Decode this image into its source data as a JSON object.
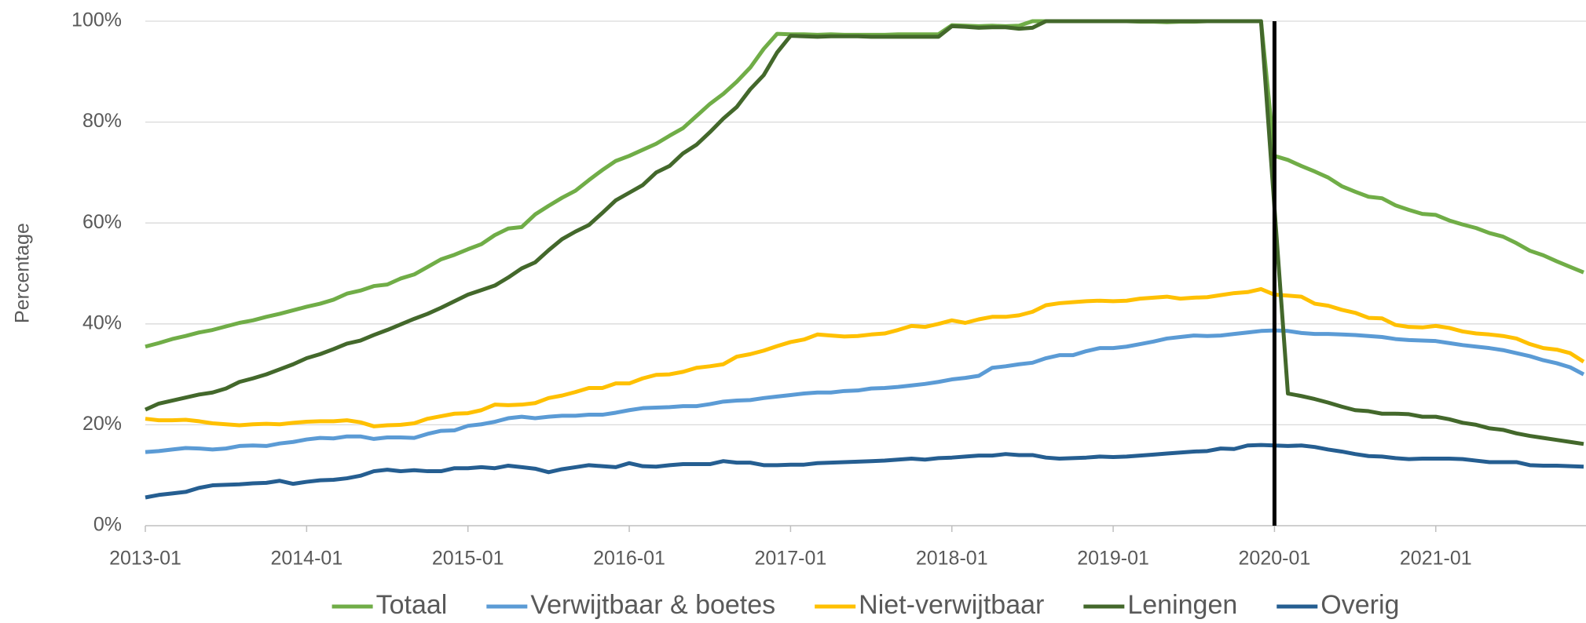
{
  "chart_data": {
    "type": "line",
    "ylabel": "Percentage",
    "categories": [
      "2013-01",
      null,
      null,
      null,
      null,
      null,
      null,
      null,
      null,
      null,
      null,
      null,
      "2014-01",
      null,
      null,
      null,
      null,
      null,
      null,
      null,
      null,
      null,
      null,
      null,
      "2015-01",
      null,
      null,
      null,
      null,
      null,
      null,
      null,
      null,
      null,
      null,
      null,
      "2016-01",
      null,
      null,
      null,
      null,
      null,
      null,
      null,
      null,
      null,
      null,
      null,
      "2017-01",
      null,
      null,
      null,
      null,
      null,
      null,
      null,
      null,
      null,
      null,
      null,
      "2018-01",
      null,
      null,
      null,
      null,
      null,
      null,
      null,
      null,
      null,
      null,
      null,
      "2019-01",
      null,
      null,
      null,
      null,
      null,
      null,
      null,
      null,
      null,
      null,
      null,
      "2020-01",
      null,
      null,
      null,
      null,
      null,
      null,
      null,
      null,
      null,
      null,
      null,
      "2021-01",
      null,
      null,
      null,
      null,
      null,
      null,
      null,
      null,
      null,
      null,
      null
    ],
    "ylim": [
      0,
      100
    ],
    "yticks": [
      {
        "value": 0,
        "label": "0%"
      },
      {
        "value": 20,
        "label": "20%"
      },
      {
        "value": 40,
        "label": "40%"
      },
      {
        "value": 60,
        "label": "60%"
      },
      {
        "value": 80,
        "label": "80%"
      },
      {
        "value": 100,
        "label": "100%"
      }
    ],
    "grid": true,
    "legend": "bottom",
    "vline": "2020-01",
    "series": [
      {
        "name": "Totaal",
        "color": "#70ad47",
        "values": [
          35.5,
          36.2,
          37,
          37.6,
          38.3,
          38.8,
          39.5,
          40.2,
          40.7,
          41.4,
          42,
          42.7,
          43.4,
          44,
          44.8,
          46,
          46.6,
          47.5,
          47.8,
          49,
          49.8,
          51.3,
          52.8,
          53.7,
          54.8,
          55.8,
          57.6,
          58.9,
          59.2,
          61.7,
          63.4,
          65,
          66.4,
          68.5,
          70.5,
          72.3,
          73.3,
          74.5,
          75.7,
          77.3,
          78.8,
          81.2,
          83.6,
          85.6,
          88,
          90.8,
          94.5,
          97.5,
          97.4,
          97.4,
          97.3,
          97.4,
          97.3,
          97.3,
          97.3,
          97.3,
          97.4,
          97.4,
          97.4,
          97.4,
          99.2,
          99.1,
          99,
          99.1,
          99,
          99.1,
          100,
          100,
          100,
          100,
          100,
          100,
          100,
          100,
          99.9,
          99.9,
          99.8,
          99.9,
          99.9,
          100,
          100,
          100,
          100,
          100,
          73.3,
          72.5,
          71.3,
          70.2,
          69,
          67.3,
          66.2,
          65.2,
          64.9,
          63.5,
          62.6,
          61.8,
          61.6,
          60.5,
          59.7,
          59,
          58,
          57.3,
          56,
          54.5,
          53.6,
          52.4,
          51.3,
          50.2
        ]
      },
      {
        "name": "Verwijtbaar & boetes",
        "color": "#5b9bd5",
        "values": [
          14.6,
          14.8,
          15.1,
          15.4,
          15.3,
          15.1,
          15.3,
          15.8,
          15.9,
          15.8,
          16.3,
          16.6,
          17.1,
          17.4,
          17.3,
          17.7,
          17.7,
          17.2,
          17.5,
          17.5,
          17.4,
          18.2,
          18.8,
          18.9,
          19.8,
          20.1,
          20.6,
          21.3,
          21.6,
          21.3,
          21.6,
          21.8,
          21.8,
          22,
          22,
          22.4,
          22.9,
          23.3,
          23.4,
          23.5,
          23.7,
          23.7,
          24.1,
          24.6,
          24.8,
          24.9,
          25.3,
          25.6,
          25.9,
          26.2,
          26.4,
          26.4,
          26.7,
          26.8,
          27.2,
          27.3,
          27.5,
          27.8,
          28.1,
          28.5,
          29,
          29.3,
          29.7,
          31.3,
          31.6,
          32,
          32.3,
          33.2,
          33.8,
          33.8,
          34.6,
          35.2,
          35.2,
          35.5,
          36,
          36.5,
          37.1,
          37.4,
          37.7,
          37.6,
          37.7,
          38,
          38.3,
          38.6,
          38.7,
          38.6,
          38.2,
          38,
          38,
          37.9,
          37.8,
          37.6,
          37.4,
          37,
          36.8,
          36.7,
          36.6,
          36.2,
          35.8,
          35.5,
          35.2,
          34.8,
          34.2,
          33.6,
          32.8,
          32.2,
          31.4,
          30
        ]
      },
      {
        "name": "Niet-verwijtbaar",
        "color": "#ffc000",
        "values": [
          21.2,
          20.9,
          20.9,
          21,
          20.7,
          20.3,
          20.1,
          19.9,
          20.1,
          20.2,
          20.1,
          20.4,
          20.6,
          20.7,
          20.7,
          20.9,
          20.5,
          19.7,
          19.9,
          20,
          20.3,
          21.2,
          21.7,
          22.2,
          22.3,
          22.9,
          24,
          23.9,
          24,
          24.3,
          25.3,
          25.8,
          26.5,
          27.3,
          27.3,
          28.2,
          28.2,
          29.2,
          29.9,
          30,
          30.5,
          31.3,
          31.6,
          32,
          33.5,
          34,
          34.7,
          35.6,
          36.4,
          36.9,
          37.9,
          37.7,
          37.5,
          37.6,
          37.9,
          38.1,
          38.8,
          39.6,
          39.4,
          40,
          40.7,
          40.2,
          40.9,
          41.4,
          41.4,
          41.7,
          42.4,
          43.7,
          44.1,
          44.3,
          44.5,
          44.6,
          44.5,
          44.6,
          45,
          45.2,
          45.4,
          45,
          45.2,
          45.3,
          45.7,
          46.1,
          46.3,
          46.9,
          45.8,
          45.6,
          45.4,
          44,
          43.6,
          42.8,
          42.2,
          41.2,
          41.1,
          39.8,
          39.4,
          39.3,
          39.6,
          39.2,
          38.5,
          38.1,
          37.9,
          37.6,
          37.1,
          36,
          35.2,
          34.9,
          34.2,
          32.5
        ]
      },
      {
        "name": "Leningen",
        "color": "#43682b",
        "values": [
          23,
          24.2,
          24.8,
          25.4,
          26,
          26.4,
          27.2,
          28.5,
          29.2,
          30,
          31,
          32,
          33.2,
          34,
          35,
          36.1,
          36.7,
          37.8,
          38.8,
          39.9,
          41,
          42,
          43.2,
          44.5,
          45.8,
          46.7,
          47.6,
          49.2,
          51,
          52.2,
          54.6,
          56.8,
          58.3,
          59.6,
          62,
          64.5,
          66,
          67.5,
          70,
          71.3,
          73.8,
          75.5,
          78,
          80.7,
          83,
          86.5,
          89.3,
          93.8,
          97.1,
          97,
          96.9,
          97,
          97,
          97,
          96.9,
          96.9,
          96.9,
          96.9,
          96.9,
          96.9,
          99,
          98.9,
          98.7,
          98.8,
          98.8,
          98.5,
          98.7,
          100,
          100,
          100,
          100,
          100,
          100,
          100,
          100,
          100,
          100,
          100,
          100,
          100,
          100,
          100,
          100,
          100,
          63,
          26.2,
          25.7,
          25.1,
          24.4,
          23.6,
          22.9,
          22.7,
          22.2,
          22.2,
          22.1,
          21.6,
          21.6,
          21.1,
          20.4,
          20,
          19.3,
          19,
          18.3,
          17.8,
          17.4,
          17,
          16.6,
          16.2
        ]
      },
      {
        "name": "Overig",
        "color": "#255e91",
        "values": [
          5.6,
          6.1,
          6.4,
          6.7,
          7.5,
          8,
          8.1,
          8.2,
          8.4,
          8.5,
          8.9,
          8.3,
          8.7,
          9,
          9.1,
          9.4,
          9.9,
          10.8,
          11.1,
          10.8,
          11,
          10.8,
          10.8,
          11.4,
          11.4,
          11.6,
          11.4,
          11.9,
          11.6,
          11.3,
          10.6,
          11.2,
          11.6,
          12,
          11.8,
          11.6,
          12.4,
          11.8,
          11.7,
          12,
          12.2,
          12.2,
          12.2,
          12.8,
          12.5,
          12.5,
          12,
          12,
          12.1,
          12.1,
          12.4,
          12.5,
          12.6,
          12.7,
          12.8,
          12.9,
          13.1,
          13.3,
          13.1,
          13.4,
          13.5,
          13.7,
          13.9,
          13.9,
          14.2,
          14,
          14,
          13.5,
          13.3,
          13.4,
          13.5,
          13.7,
          13.6,
          13.7,
          13.9,
          14.1,
          14.3,
          14.5,
          14.7,
          14.8,
          15.3,
          15.2,
          15.9,
          16,
          15.9,
          15.8,
          15.9,
          15.6,
          15.1,
          14.7,
          14.2,
          13.8,
          13.7,
          13.4,
          13.2,
          13.3,
          13.3,
          13.3,
          13.2,
          12.9,
          12.6,
          12.6,
          12.6,
          12,
          11.9,
          11.9,
          11.8,
          11.7
        ]
      }
    ]
  }
}
